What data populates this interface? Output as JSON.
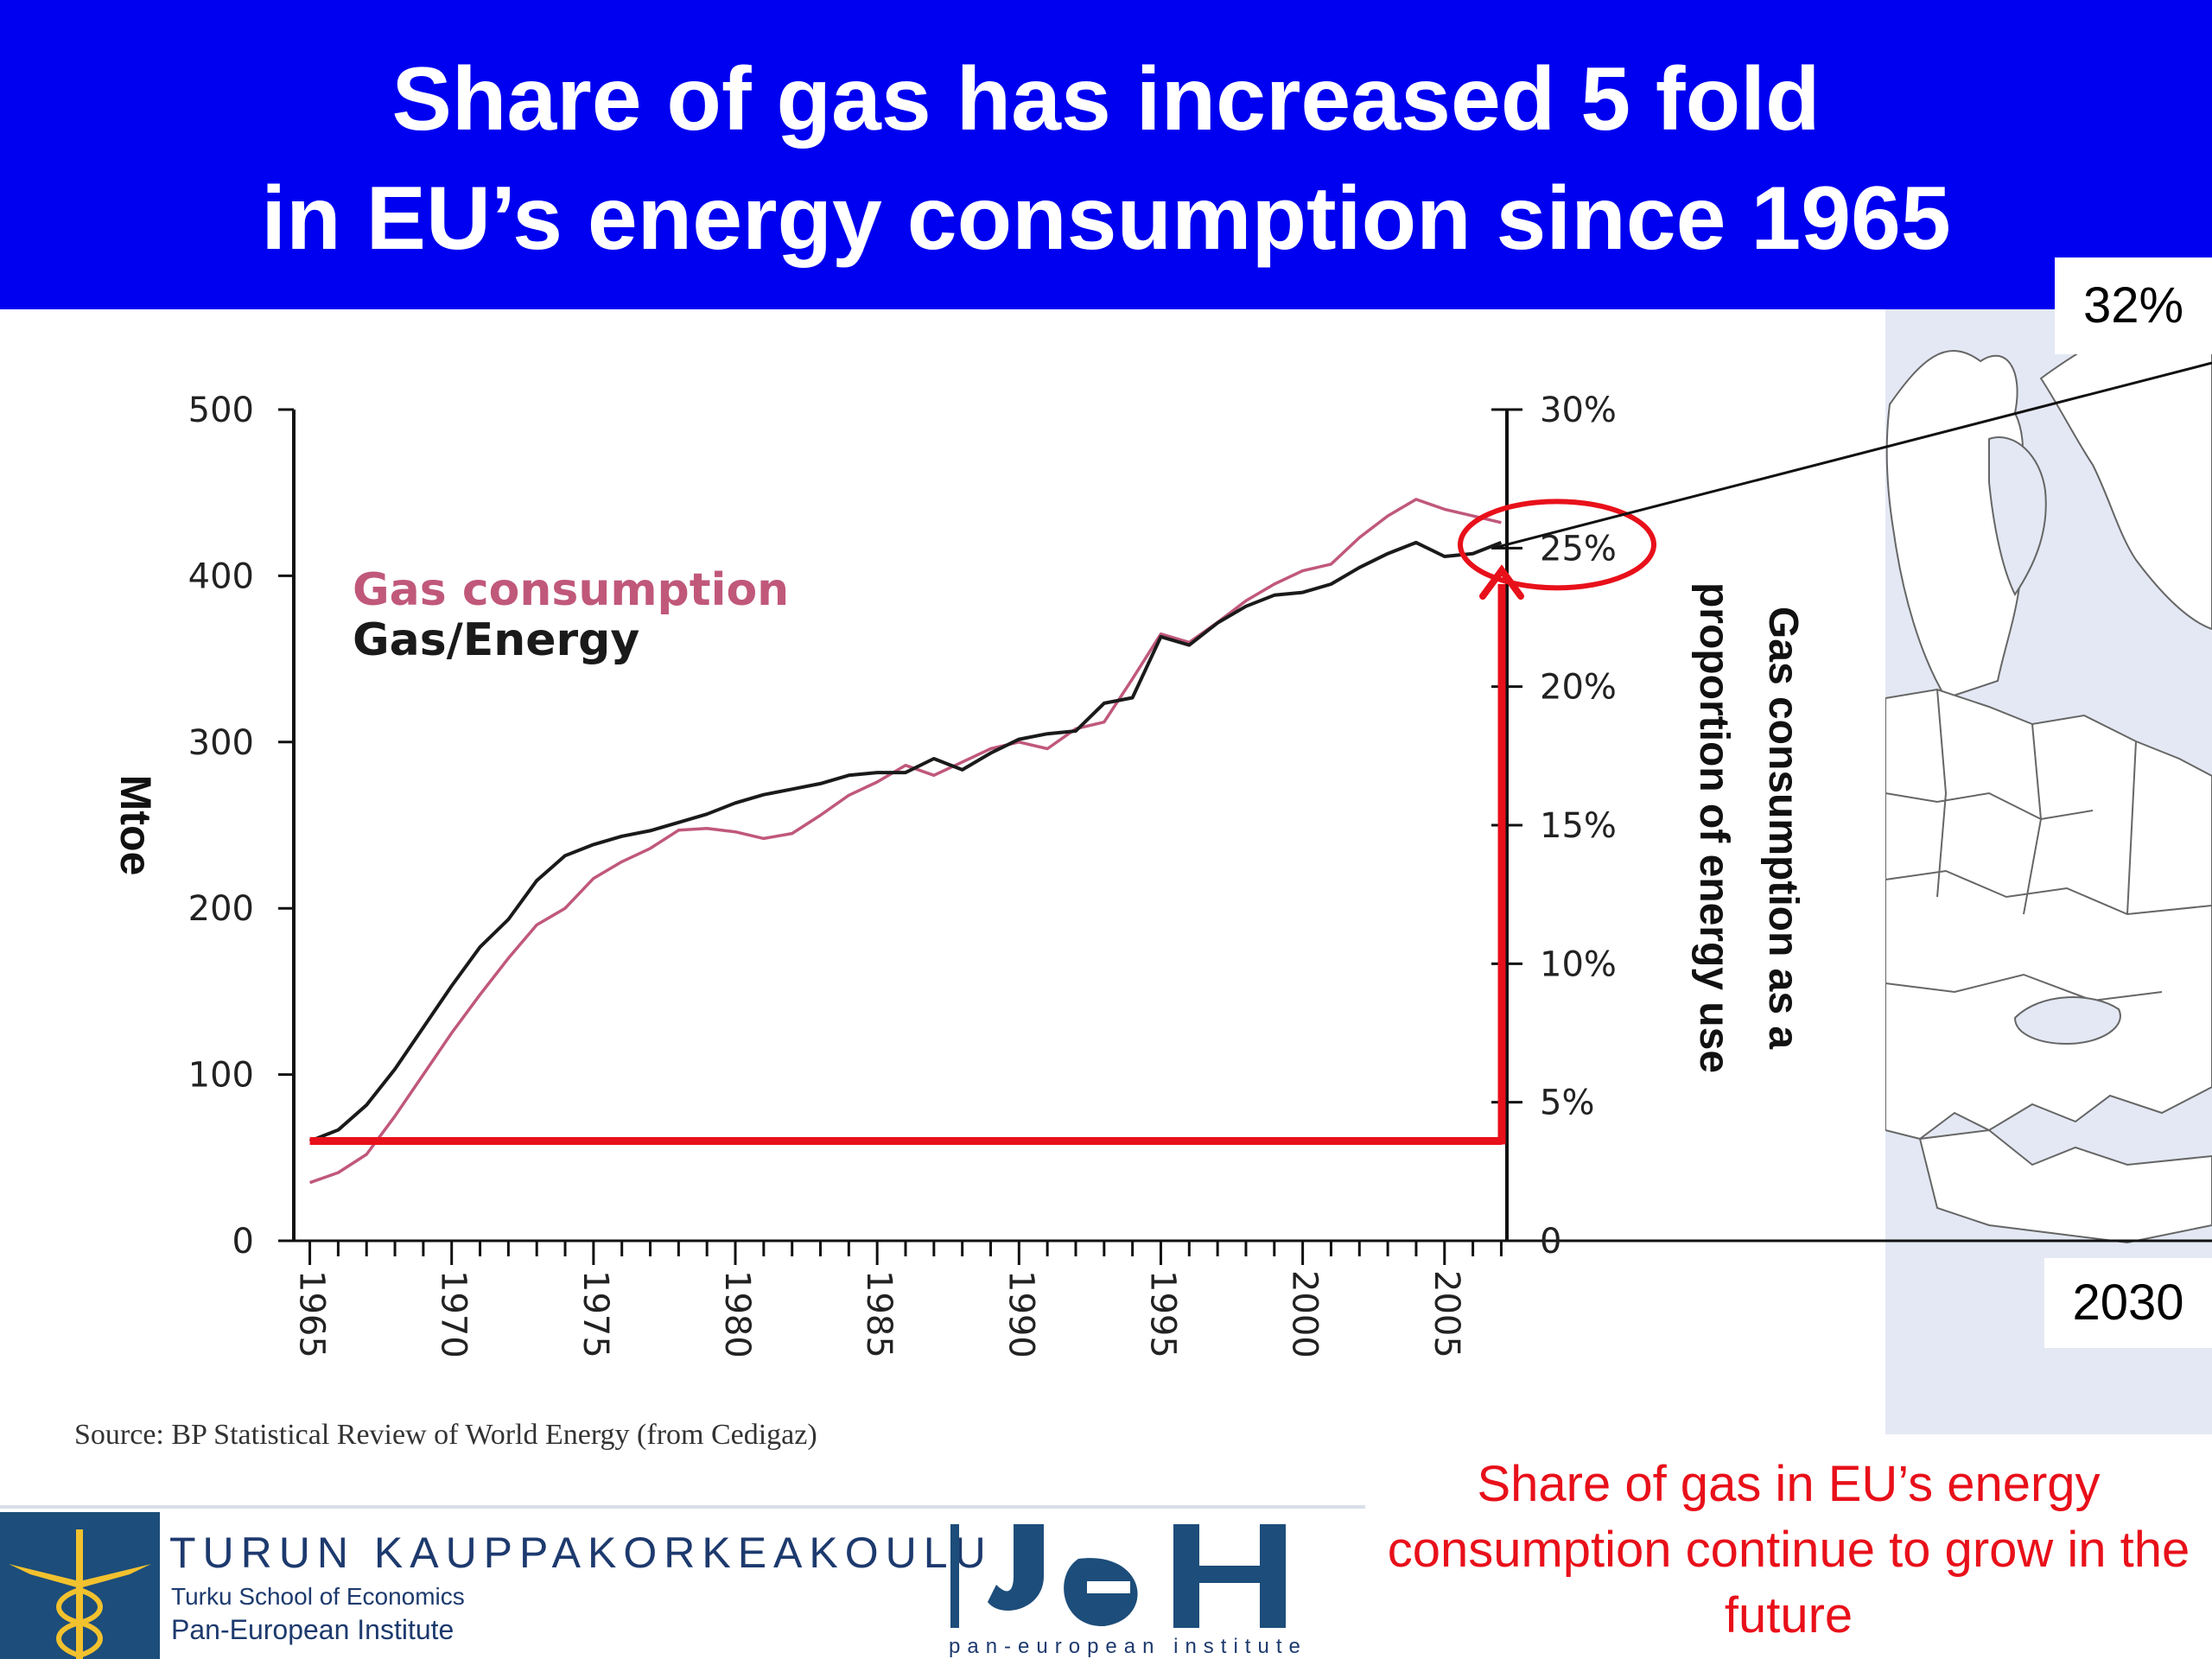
{
  "slide": {
    "title_line1": "Share of gas has increased 5 fold",
    "title_line2": "in EU’s energy consumption since 1965",
    "callout_top": "32%",
    "callout_bottom": "2030",
    "source": "Source: BP Statistical Review of World Energy (from Cedigaz)",
    "future_note": "Share of gas in EU’s energy consumption continue to grow in the future"
  },
  "logos": {
    "tse_name": "TURUN KAUPPAKORKEAKOULU",
    "tse_sub1": "Turku School of Economics",
    "tse_sub2": "Pan-European Institute",
    "pei_text": "pan-european institute"
  },
  "colors": {
    "header_bg": "#0000f0",
    "gas_consumption": "#c0587a",
    "gas_energy": "#1a1a1a",
    "highlight": "#e8101a",
    "map_bg": "#e3e8f4"
  },
  "chart_data": {
    "type": "line",
    "ylabel": "Mtoe",
    "y2label": "Gas consumption as a proportion of energy use",
    "ylim": [
      0,
      500
    ],
    "y2lim": [
      0,
      30
    ],
    "yticks": [
      "0",
      "100",
      "200",
      "300",
      "400",
      "500"
    ],
    "y2ticks": [
      "0",
      "5%",
      "10%",
      "15%",
      "20%",
      "25%",
      "30%"
    ],
    "x": [
      1965,
      1966,
      1967,
      1968,
      1969,
      1970,
      1971,
      1972,
      1973,
      1974,
      1975,
      1976,
      1977,
      1978,
      1979,
      1980,
      1981,
      1982,
      1983,
      1984,
      1985,
      1986,
      1987,
      1988,
      1989,
      1990,
      1991,
      1992,
      1993,
      1994,
      1995,
      1996,
      1997,
      1998,
      1999,
      2000,
      2001,
      2002,
      2003,
      2004,
      2005,
      2006,
      2007
    ],
    "xticks": [
      "1965",
      "1970",
      "1975",
      "1980",
      "1985",
      "1990",
      "1995",
      "2000",
      "2005"
    ],
    "legend": [
      "Gas consumption",
      "Gas/Energy"
    ],
    "legend_position": "top-left",
    "series": [
      {
        "name": "Gas consumption",
        "axis": "left",
        "values": [
          35,
          41,
          52,
          75,
          100,
          125,
          148,
          170,
          190,
          200,
          218,
          228,
          236,
          247,
          248,
          246,
          242,
          245,
          256,
          268,
          276,
          286,
          280,
          288,
          296,
          300,
          296,
          308,
          312,
          338,
          365,
          360,
          372,
          385,
          395,
          403,
          407,
          423,
          436,
          446,
          440,
          436,
          432
        ]
      },
      {
        "name": "Gas/Energy",
        "axis": "right",
        "values": [
          3.6,
          4.0,
          4.9,
          6.2,
          7.7,
          9.2,
          10.6,
          11.6,
          13.0,
          13.9,
          14.3,
          14.6,
          14.8,
          15.1,
          15.4,
          15.8,
          16.1,
          16.3,
          16.5,
          16.8,
          16.9,
          16.9,
          17.4,
          17.0,
          17.6,
          18.1,
          18.3,
          18.4,
          19.4,
          19.6,
          21.8,
          21.5,
          22.3,
          22.9,
          23.3,
          23.4,
          23.7,
          24.3,
          24.8,
          25.2,
          24.7,
          24.8,
          25.2
        ]
      }
    ],
    "annotations": {
      "baseline_share": 3.6,
      "circled_share": 25,
      "callout_top": "32%",
      "callout_bottom": "2030"
    }
  }
}
